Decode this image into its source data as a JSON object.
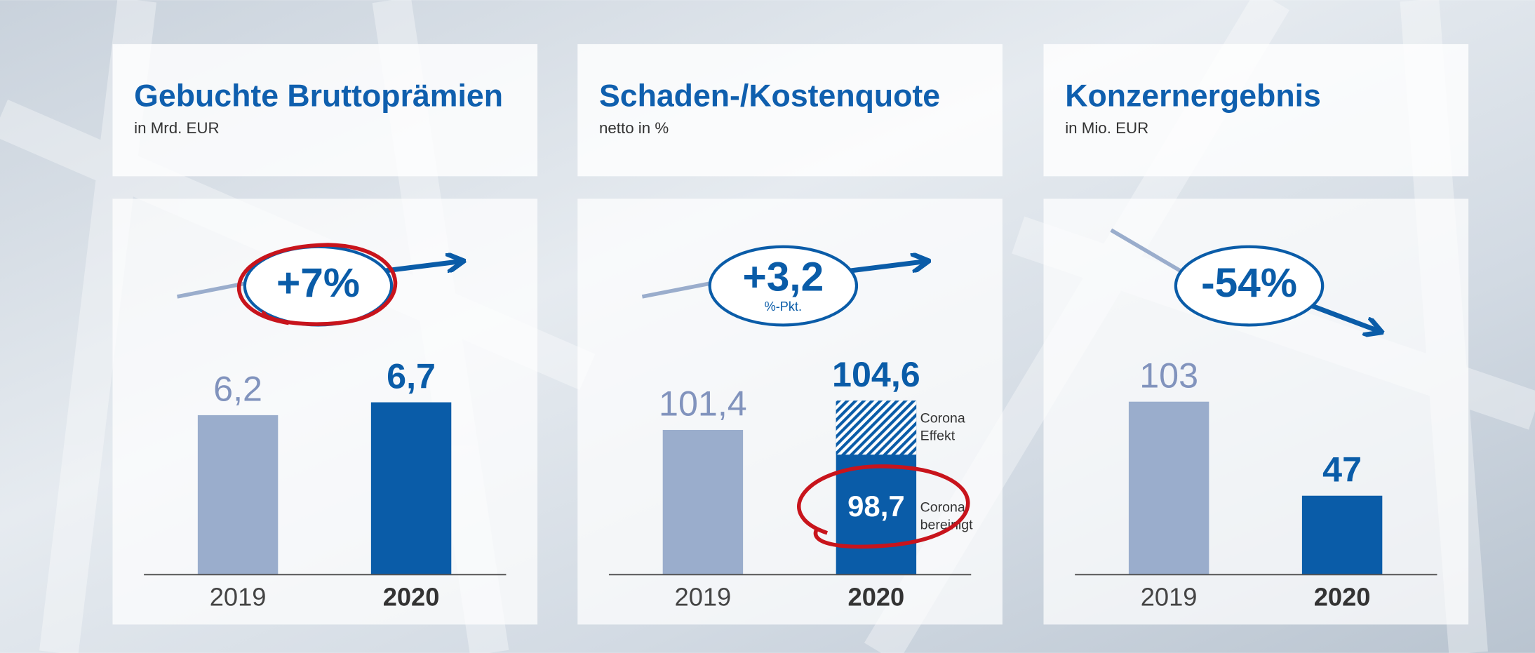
{
  "chart_data": [
    {
      "type": "bar",
      "title": "Gebuchte Bruttoprämien",
      "subtitle": "in Mrd. EUR",
      "categories": [
        "2019",
        "2020"
      ],
      "values": [
        6.2,
        6.7
      ],
      "value_labels": [
        "6,2",
        "6,7"
      ],
      "colors": [
        "#9aadcc",
        "#0a5ca8"
      ],
      "ylim": [
        0,
        9.4
      ],
      "change": "+7%",
      "highlight_change": true
    },
    {
      "type": "bar",
      "title": "Schaden-/Kostenquote",
      "subtitle": "netto in %",
      "categories": [
        "2019",
        "2020"
      ],
      "values": [
        101.4,
        104.6
      ],
      "value_labels": [
        "101,4",
        "104,6"
      ],
      "colors": [
        "#9aadcc",
        "#0a5ca8"
      ],
      "ylim": [
        85.6,
        112
      ],
      "change": "+3,2",
      "change_unit": "%-Pkt.",
      "adjusted": {
        "value": 98.7,
        "value_label": "98,7",
        "label": [
          "Corona-",
          "bereinigt"
        ],
        "effect_label": [
          "Corona",
          "Effekt"
        ],
        "highlight": true
      }
    },
    {
      "type": "bar",
      "title": "Konzernergebnis",
      "subtitle": "in Mio. EUR",
      "categories": [
        "2019",
        "2020"
      ],
      "values": [
        103,
        47
      ],
      "value_labels": [
        "103",
        "47"
      ],
      "colors": [
        "#9aadcc",
        "#0a5ca8"
      ],
      "ylim": [
        0,
        144
      ],
      "change": "-54%"
    }
  ]
}
